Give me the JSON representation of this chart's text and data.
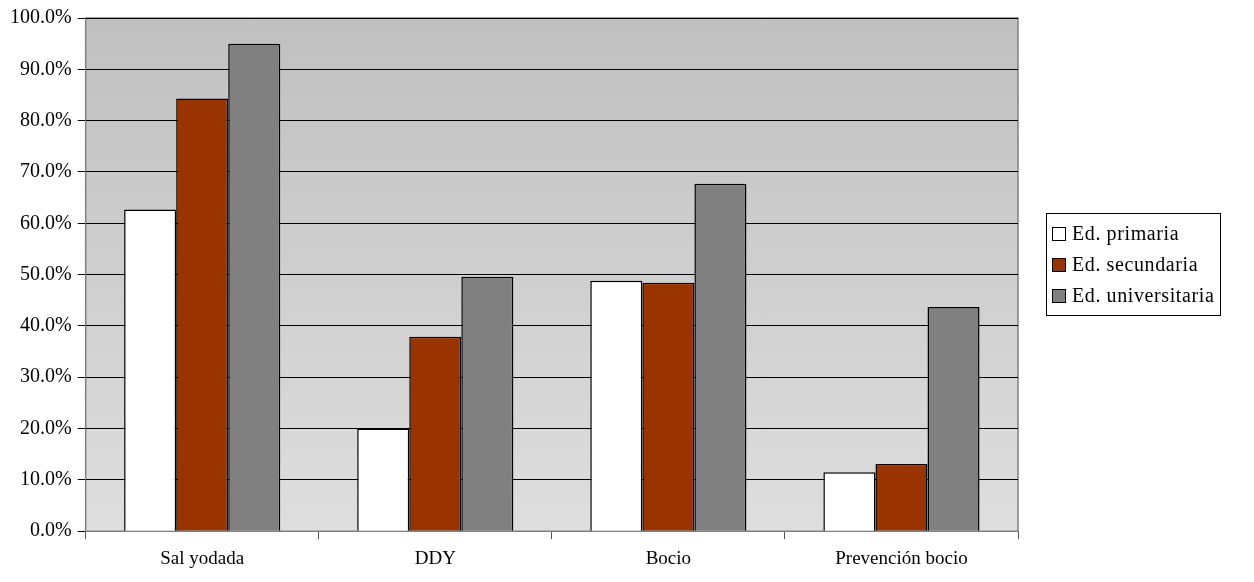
{
  "chart_data": {
    "type": "bar",
    "categories": [
      "Sal yodada",
      "DDY",
      "Bocio",
      "Prevención bocio"
    ],
    "series": [
      {
        "name": "Ed. primaria",
        "color": "#ffffff",
        "values": [
          62.7,
          20.0,
          48.8,
          11.5
        ]
      },
      {
        "name": "Ed. secundaria",
        "color": "#993300",
        "values": [
          84.3,
          37.9,
          48.4,
          13.1
        ]
      },
      {
        "name": "Ed. universitaria",
        "color": "#808080",
        "values": [
          95.0,
          49.6,
          67.7,
          43.7
        ]
      }
    ],
    "ylim": [
      0,
      100
    ],
    "yticks": [
      {
        "value": 0,
        "label": "0.0%"
      },
      {
        "value": 10,
        "label": "10.0%"
      },
      {
        "value": 20,
        "label": "20.0%"
      },
      {
        "value": 30,
        "label": "30.0%"
      },
      {
        "value": 40,
        "label": "40.0%"
      },
      {
        "value": 50,
        "label": "50.0%"
      },
      {
        "value": 60,
        "label": "60.0%"
      },
      {
        "value": 70,
        "label": "70.0%"
      },
      {
        "value": 80,
        "label": "80.0%"
      },
      {
        "value": 90,
        "label": "90.0%"
      },
      {
        "value": 100,
        "label": "100.0%"
      }
    ],
    "grid": "y",
    "legend": "right"
  }
}
